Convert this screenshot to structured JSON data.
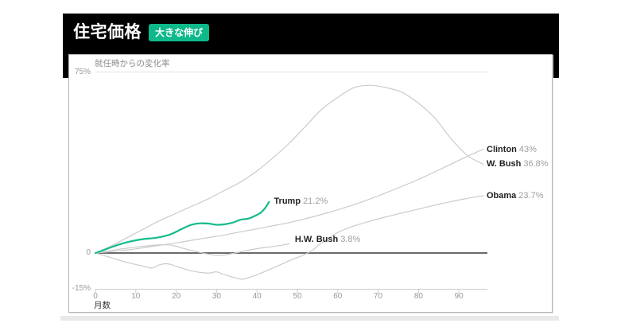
{
  "header": {
    "title": "住宅価格",
    "badge": "大きな伸び",
    "badge_color": "#0db98a",
    "bg_color": "#000000"
  },
  "chart_data": {
    "type": "line",
    "subtitle": "就任時からの変化率",
    "xlabel": "月数",
    "xlim": [
      0,
      97
    ],
    "ylim": [
      -15,
      75
    ],
    "grid": "horizontal-only",
    "x_ticks": [
      0,
      10,
      20,
      30,
      40,
      50,
      60,
      70,
      80,
      90
    ],
    "y_gridlines": [
      {
        "value": 75,
        "label": "75%"
      },
      {
        "value": 0,
        "label": "0"
      },
      {
        "value": -15,
        "label": "-15%"
      }
    ],
    "accent_color": "#14bb8c",
    "line_gray": "#cbcbcb",
    "series": [
      {
        "name": "Clinton",
        "end_label": "43%",
        "color": "#cbcbcb",
        "label_at_right": true,
        "points": [
          [
            0,
            0
          ],
          [
            4,
            0.6
          ],
          [
            8,
            1.3
          ],
          [
            12,
            2.2
          ],
          [
            16,
            3.2
          ],
          [
            20,
            4.2
          ],
          [
            24,
            5.3
          ],
          [
            28,
            6.4
          ],
          [
            32,
            7.5
          ],
          [
            36,
            8.8
          ],
          [
            40,
            10
          ],
          [
            44,
            11.3
          ],
          [
            48,
            12.6
          ],
          [
            52,
            14.2
          ],
          [
            56,
            16
          ],
          [
            60,
            17.9
          ],
          [
            64,
            20
          ],
          [
            68,
            22.4
          ],
          [
            72,
            25
          ],
          [
            76,
            27.7
          ],
          [
            80,
            30.5
          ],
          [
            84,
            33.6
          ],
          [
            88,
            36.8
          ],
          [
            92,
            40
          ],
          [
            96,
            43
          ]
        ]
      },
      {
        "name": "W. Bush",
        "end_label": "36.8%",
        "color": "#cbcbcb",
        "label_at_right": true,
        "points": [
          [
            0,
            0
          ],
          [
            4,
            3
          ],
          [
            8,
            6.5
          ],
          [
            12,
            10
          ],
          [
            16,
            13.5
          ],
          [
            20,
            16.5
          ],
          [
            24,
            19.5
          ],
          [
            28,
            22.5
          ],
          [
            32,
            26
          ],
          [
            36,
            29.5
          ],
          [
            40,
            34
          ],
          [
            44,
            39.5
          ],
          [
            48,
            45.5
          ],
          [
            52,
            52.5
          ],
          [
            56,
            59.5
          ],
          [
            60,
            64.5
          ],
          [
            64,
            68.5
          ],
          [
            68,
            69.5
          ],
          [
            72,
            68.5
          ],
          [
            76,
            66.5
          ],
          [
            80,
            62
          ],
          [
            84,
            56
          ],
          [
            88,
            47.5
          ],
          [
            92,
            40.5
          ],
          [
            96,
            36.8
          ]
        ]
      },
      {
        "name": "Obama",
        "end_label": "23.7%",
        "color": "#cbcbcb",
        "label_at_right": true,
        "points": [
          [
            0,
            0
          ],
          [
            4,
            -2
          ],
          [
            8,
            -4
          ],
          [
            12,
            -5.5
          ],
          [
            14,
            -6.2
          ],
          [
            16,
            -4.8
          ],
          [
            18,
            -4.5
          ],
          [
            20,
            -5.5
          ],
          [
            24,
            -7.5
          ],
          [
            28,
            -8.3
          ],
          [
            30,
            -7.8
          ],
          [
            32,
            -9
          ],
          [
            36,
            -10.8
          ],
          [
            38,
            -10.2
          ],
          [
            40,
            -9
          ],
          [
            44,
            -6.2
          ],
          [
            48,
            -3.2
          ],
          [
            52,
            -0.5
          ],
          [
            54,
            1.5
          ],
          [
            56,
            4.2
          ],
          [
            60,
            8.5
          ],
          [
            64,
            11.2
          ],
          [
            68,
            13.2
          ],
          [
            72,
            15
          ],
          [
            76,
            16.6
          ],
          [
            80,
            18.2
          ],
          [
            84,
            19.8
          ],
          [
            88,
            21.3
          ],
          [
            92,
            22.6
          ],
          [
            96,
            23.7
          ]
        ]
      },
      {
        "name": "H.W. Bush",
        "end_label": "3.8%",
        "color": "#cbcbcb",
        "label_at_right": false,
        "label_offset": [
          7,
          -12
        ],
        "points": [
          [
            0,
            0
          ],
          [
            3,
            0.8
          ],
          [
            6,
            1.6
          ],
          [
            9,
            2.2
          ],
          [
            12,
            2.8
          ],
          [
            15,
            3.3
          ],
          [
            18,
            3.4
          ],
          [
            20,
            2.8
          ],
          [
            22,
            1.8
          ],
          [
            24,
            1.0
          ],
          [
            26,
            0.2
          ],
          [
            28,
            -0.5
          ],
          [
            30,
            -1
          ],
          [
            32,
            -0.8
          ],
          [
            34,
            -0.2
          ],
          [
            36,
            0.5
          ],
          [
            38,
            1.2
          ],
          [
            40,
            1.8
          ],
          [
            42,
            2.3
          ],
          [
            44,
            2.7
          ],
          [
            46,
            3.2
          ],
          [
            48,
            3.8
          ]
        ]
      },
      {
        "name": "Trump",
        "end_label": "21.2%",
        "color": "#14bb8c",
        "highlight": true,
        "label_at_right": false,
        "label_offset": [
          6,
          -8
        ],
        "points": [
          [
            0,
            0
          ],
          [
            3,
            1.8
          ],
          [
            6,
            3.6
          ],
          [
            9,
            4.9
          ],
          [
            12,
            5.8
          ],
          [
            15,
            6.3
          ],
          [
            18,
            7.4
          ],
          [
            20,
            8.8
          ],
          [
            22,
            10.5
          ],
          [
            24,
            11.8
          ],
          [
            26,
            12.3
          ],
          [
            28,
            12.2
          ],
          [
            30,
            11.7
          ],
          [
            32,
            11.9
          ],
          [
            34,
            12.6
          ],
          [
            36,
            13.8
          ],
          [
            38,
            14.3
          ],
          [
            40,
            15.8
          ],
          [
            41,
            16.8
          ],
          [
            42,
            18.6
          ],
          [
            43,
            21.2
          ]
        ]
      }
    ]
  }
}
